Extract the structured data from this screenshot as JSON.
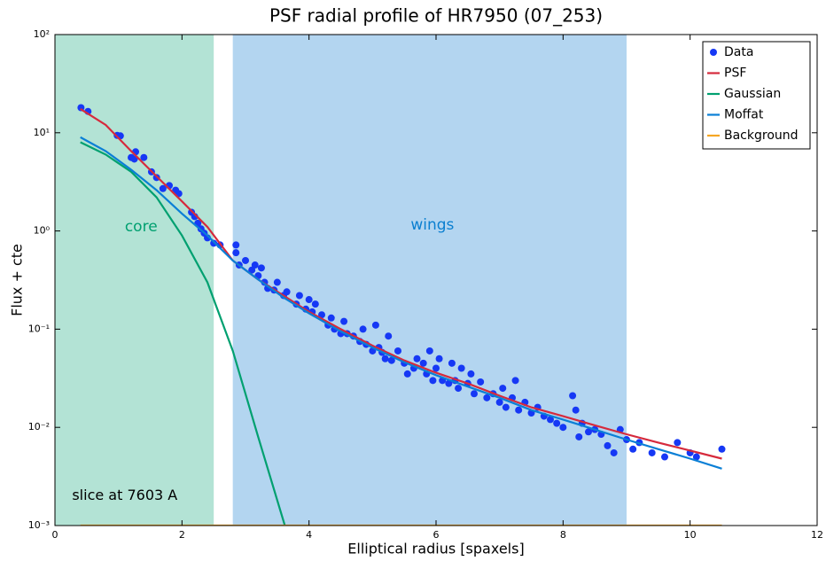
{
  "chart_data": {
    "type": "scatter_lines",
    "title": "PSF radial profile of HR7950 (07_253)",
    "x_label": "Elliptical radius [spaxels]",
    "y_label": "Flux + cte",
    "log_y": true,
    "xlim": [
      0,
      12
    ],
    "ylim": [
      0.001,
      100
    ],
    "xticks": [
      0,
      2,
      4,
      6,
      8,
      10,
      12
    ],
    "yticks": [
      {
        "value": 0.001,
        "label": "10⁻³"
      },
      {
        "value": 0.01,
        "label": "10⁻²"
      },
      {
        "value": 0.1,
        "label": "10⁻¹"
      },
      {
        "value": 1,
        "label": "10⁰"
      },
      {
        "value": 10,
        "label": "10¹"
      },
      {
        "value": 100,
        "label": "10²"
      }
    ],
    "legend": "top-right",
    "spans": [
      {
        "x": [
          0,
          2.5
        ],
        "color": "#b3e3d5"
      },
      {
        "x": [
          2.8,
          9.0
        ],
        "color": "#b3d5f0"
      }
    ],
    "annotations": [
      {
        "text": "core",
        "color": "#00a070"
      },
      {
        "text": "wings",
        "color": "#0a7fd0"
      },
      {
        "text": "slice at 7603 A",
        "color": "#000000"
      }
    ],
    "series": [
      {
        "name": "Data",
        "kind": "scatter",
        "color": "#1638f5",
        "x": [
          0.41,
          0.52,
          0.98,
          1.03,
          1.2,
          1.25,
          1.27,
          1.4,
          1.52,
          1.6,
          1.7,
          1.8,
          1.9,
          1.95,
          2.15,
          2.2,
          2.25,
          2.3,
          2.35,
          2.4,
          2.5,
          2.6,
          2.85,
          2.85,
          2.9,
          3.0,
          3.1,
          3.15,
          3.2,
          3.25,
          3.3,
          3.35,
          3.45,
          3.5,
          3.6,
          3.65,
          3.8,
          3.85,
          3.95,
          4.0,
          4.05,
          4.1,
          4.2,
          4.3,
          4.35,
          4.4,
          4.5,
          4.55,
          4.6,
          4.7,
          4.8,
          4.85,
          4.9,
          5.0,
          5.05,
          5.1,
          5.15,
          5.2,
          5.25,
          5.3,
          5.4,
          5.5,
          5.55,
          5.65,
          5.7,
          5.8,
          5.85,
          5.9,
          5.95,
          6.0,
          6.05,
          6.1,
          6.2,
          6.25,
          6.3,
          6.35,
          6.4,
          6.5,
          6.55,
          6.6,
          6.7,
          6.8,
          6.9,
          7.0,
          7.05,
          7.1,
          7.2,
          7.25,
          7.3,
          7.4,
          7.5,
          7.6,
          7.7,
          7.8,
          7.9,
          8.0,
          8.15,
          8.2,
          8.25,
          8.3,
          8.4,
          8.5,
          8.6,
          8.7,
          8.8,
          8.9,
          9.0,
          9.1,
          9.2,
          9.4,
          9.6,
          9.8,
          10.0,
          10.1,
          10.5
        ],
        "values": [
          18,
          16.5,
          9.4,
          9.3,
          5.6,
          5.4,
          6.4,
          5.6,
          4.0,
          3.5,
          2.7,
          2.9,
          2.6,
          2.4,
          1.55,
          1.4,
          1.2,
          1.05,
          0.95,
          0.85,
          0.75,
          0.72,
          0.72,
          0.6,
          0.45,
          0.5,
          0.4,
          0.45,
          0.35,
          0.42,
          0.3,
          0.26,
          0.25,
          0.3,
          0.22,
          0.24,
          0.18,
          0.22,
          0.16,
          0.2,
          0.15,
          0.18,
          0.14,
          0.11,
          0.13,
          0.1,
          0.09,
          0.12,
          0.09,
          0.085,
          0.075,
          0.1,
          0.07,
          0.06,
          0.11,
          0.065,
          0.058,
          0.05,
          0.085,
          0.048,
          0.06,
          0.045,
          0.035,
          0.04,
          0.05,
          0.045,
          0.035,
          0.06,
          0.03,
          0.04,
          0.05,
          0.03,
          0.028,
          0.045,
          0.03,
          0.025,
          0.04,
          0.028,
          0.035,
          0.022,
          0.029,
          0.02,
          0.022,
          0.018,
          0.025,
          0.016,
          0.02,
          0.03,
          0.015,
          0.018,
          0.014,
          0.016,
          0.013,
          0.012,
          0.011,
          0.01,
          0.021,
          0.015,
          0.008,
          0.011,
          0.009,
          0.0095,
          0.0085,
          0.0065,
          0.0055,
          0.0095,
          0.0075,
          0.006,
          0.007,
          0.0055,
          0.005,
          0.007,
          0.0055,
          0.005,
          0.006
        ]
      },
      {
        "name": "PSF",
        "kind": "line",
        "color": "#d62a3c",
        "x": [
          0.4,
          0.8,
          1.2,
          1.6,
          2.0,
          2.4,
          2.8,
          3.2,
          3.6,
          4.0,
          4.5,
          5.0,
          5.5,
          6.0,
          6.5,
          7.0,
          7.5,
          8.0,
          8.5,
          9.0,
          9.5,
          10.0,
          10.5
        ],
        "values": [
          17.5,
          12,
          6.5,
          3.6,
          2.0,
          1.1,
          0.5,
          0.32,
          0.22,
          0.15,
          0.1,
          0.068,
          0.048,
          0.036,
          0.028,
          0.021,
          0.016,
          0.013,
          0.0105,
          0.0085,
          0.007,
          0.0058,
          0.0048
        ]
      },
      {
        "name": "Gaussian",
        "kind": "line",
        "color": "#00a070",
        "x": [
          0.4,
          0.8,
          1.2,
          1.6,
          2.0,
          2.4,
          2.8,
          3.2,
          3.62
        ],
        "values": [
          8,
          6,
          4,
          2.2,
          0.9,
          0.3,
          0.06,
          0.008,
          0.001
        ]
      },
      {
        "name": "Moffat",
        "kind": "line",
        "color": "#0a7fd6",
        "x": [
          0.4,
          0.8,
          1.2,
          1.6,
          2.0,
          2.4,
          2.8,
          3.2,
          3.6,
          4.0,
          4.5,
          5.0,
          5.5,
          6.0,
          6.5,
          7.0,
          7.5,
          8.0,
          8.5,
          9.0,
          9.5,
          10.0,
          10.5
        ],
        "values": [
          9,
          6.5,
          4.2,
          2.6,
          1.5,
          0.9,
          0.5,
          0.32,
          0.21,
          0.145,
          0.095,
          0.065,
          0.046,
          0.034,
          0.026,
          0.02,
          0.015,
          0.012,
          0.0095,
          0.0075,
          0.006,
          0.0048,
          0.0038
        ]
      },
      {
        "name": "Background",
        "kind": "line",
        "color": "#f5a623",
        "x": [
          0.4,
          10.5
        ],
        "values": [
          0.001,
          0.001
        ]
      }
    ]
  }
}
